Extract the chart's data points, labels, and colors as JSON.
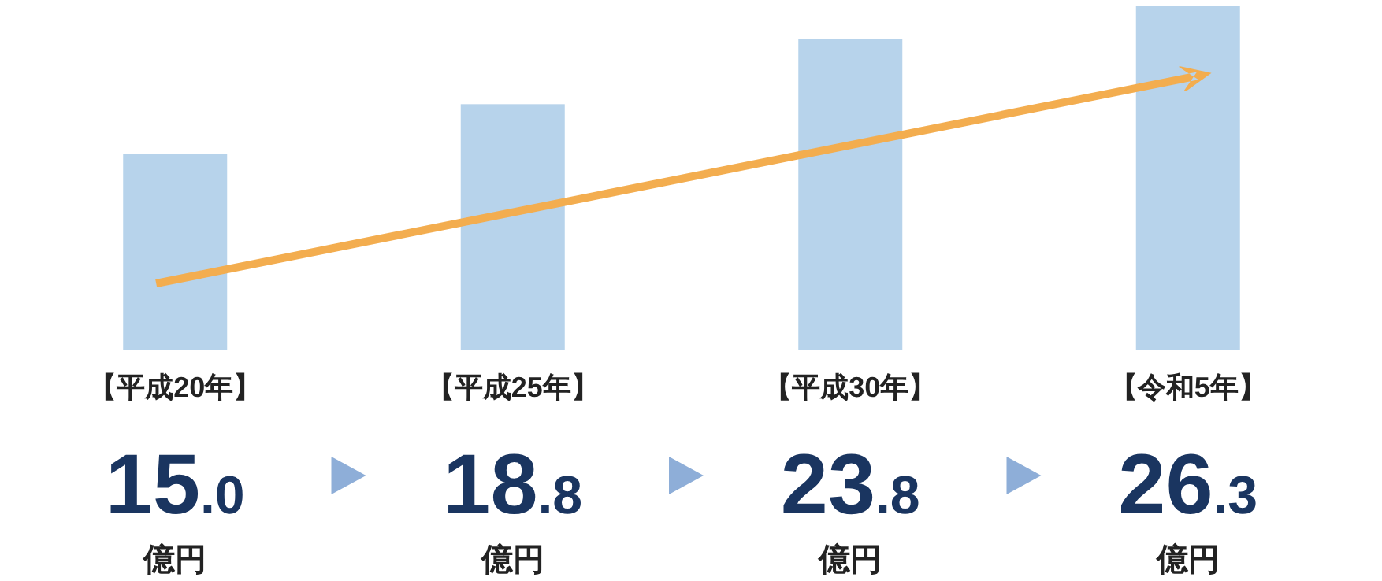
{
  "chart_data": {
    "type": "bar",
    "categories": [
      "【平成20年】",
      "【平成25年】",
      "【平成30年】",
      "【令和5年】"
    ],
    "values": [
      15.0,
      18.8,
      23.8,
      26.3
    ],
    "color": "#b7d3eb",
    "value_labels": [
      "15.0\n億円",
      "18.8\n億円",
      "23.8\n億円",
      "26.3\n億円"
    ]
  }
}
